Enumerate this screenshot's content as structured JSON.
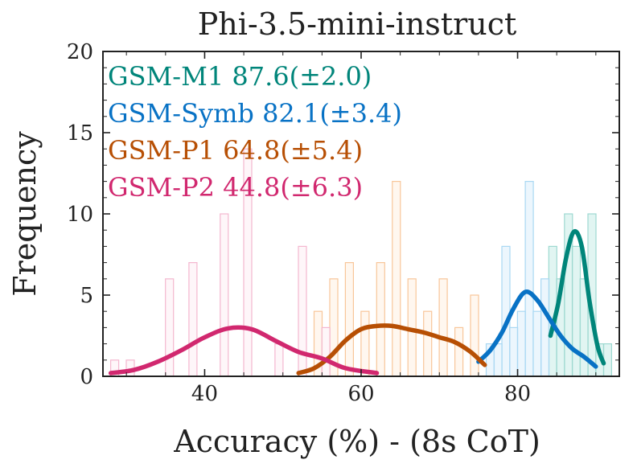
{
  "chart_data": {
    "type": "histogram",
    "title": "Phi-3.5-mini-instruct",
    "xlabel": "Accuracy (%) - (8s CoT)",
    "ylabel": "Frequency",
    "xlim": [
      27,
      93
    ],
    "ylim": [
      0,
      20
    ],
    "x_ticks": [
      40,
      60,
      80
    ],
    "x_tick_labels": [
      "40",
      "60",
      "80"
    ],
    "y_ticks": [
      0,
      5,
      10,
      15,
      20
    ],
    "y_tick_labels": [
      "0",
      "5",
      "10",
      "15",
      "20"
    ],
    "legend_position": "top-left",
    "series": [
      {
        "name": "GSM-M1",
        "legend": "GSM-M1 87.6(±2.0)",
        "color": "#00857a",
        "bar_fill": "#c8ece7",
        "bar_stroke": "#9ed9d1",
        "bins": [
          {
            "x": 84.5,
            "count": 8
          },
          {
            "x": 85.5,
            "count": 6
          },
          {
            "x": 86.5,
            "count": 10
          },
          {
            "x": 87.5,
            "count": 8
          },
          {
            "x": 88.5,
            "count": 6
          },
          {
            "x": 89.5,
            "count": 10
          },
          {
            "x": 90.5,
            "count": 2
          },
          {
            "x": 91.5,
            "count": 2
          }
        ],
        "curve": [
          [
            84.2,
            2.5
          ],
          [
            85.2,
            4.5
          ],
          [
            86.2,
            7.3
          ],
          [
            87.2,
            8.9
          ],
          [
            88.2,
            8.0
          ],
          [
            89.2,
            4.6
          ],
          [
            90.2,
            1.9
          ],
          [
            91.0,
            0.8
          ]
        ]
      },
      {
        "name": "GSM-Symb",
        "legend": "GSM-Symb 82.1(±3.4)",
        "color": "#0872c5",
        "bar_fill": "#dceffb",
        "bar_stroke": "#a9d8f3",
        "bins": [
          {
            "x": 76.5,
            "count": 2
          },
          {
            "x": 77.5,
            "count": 2
          },
          {
            "x": 78.5,
            "count": 8
          },
          {
            "x": 79.5,
            "count": 3
          },
          {
            "x": 80.5,
            "count": 4
          },
          {
            "x": 81.5,
            "count": 12
          },
          {
            "x": 82.5,
            "count": 4
          },
          {
            "x": 83.5,
            "count": 6
          }
        ],
        "curve": [
          [
            75.0,
            0.9
          ],
          [
            76.5,
            1.6
          ],
          [
            78.0,
            2.7
          ],
          [
            79.5,
            4.2
          ],
          [
            81.0,
            5.2
          ],
          [
            82.5,
            4.7
          ],
          [
            84.0,
            3.6
          ],
          [
            85.5,
            2.5
          ],
          [
            87.0,
            1.7
          ],
          [
            88.5,
            1.2
          ],
          [
            90.0,
            0.6
          ]
        ]
      },
      {
        "name": "GSM-P1",
        "legend": "GSM-P1 64.8(±5.4)",
        "color": "#b74f04",
        "bar_fill": "#fff0e2",
        "bar_stroke": "#f8c69a",
        "bins": [
          {
            "x": 54.5,
            "count": 4
          },
          {
            "x": 56.5,
            "count": 6
          },
          {
            "x": 58.5,
            "count": 7
          },
          {
            "x": 60.5,
            "count": 4
          },
          {
            "x": 62.5,
            "count": 7
          },
          {
            "x": 64.5,
            "count": 12
          },
          {
            "x": 66.5,
            "count": 6
          },
          {
            "x": 68.5,
            "count": 4
          },
          {
            "x": 70.5,
            "count": 6
          },
          {
            "x": 72.5,
            "count": 3
          },
          {
            "x": 74.5,
            "count": 5
          }
        ],
        "curve": [
          [
            52.0,
            0.2
          ],
          [
            54.0,
            0.5
          ],
          [
            56.0,
            1.2
          ],
          [
            58.0,
            2.2
          ],
          [
            60.0,
            2.9
          ],
          [
            62.0,
            3.1
          ],
          [
            64.0,
            3.1
          ],
          [
            66.0,
            2.9
          ],
          [
            68.0,
            2.7
          ],
          [
            70.0,
            2.4
          ],
          [
            72.0,
            2.1
          ],
          [
            74.0,
            1.5
          ],
          [
            75.8,
            0.7
          ]
        ]
      },
      {
        "name": "GSM-P2",
        "legend": "GSM-P2 44.8(±6.3)",
        "color": "#d1286f",
        "bar_fill": "#fdeef4",
        "bar_stroke": "#f4b7cf",
        "bins": [
          {
            "x": 28.5,
            "count": 1
          },
          {
            "x": 30.5,
            "count": 1
          },
          {
            "x": 35.5,
            "count": 6
          },
          {
            "x": 38.5,
            "count": 7
          },
          {
            "x": 42.5,
            "count": 10
          },
          {
            "x": 45.5,
            "count": 14
          },
          {
            "x": 49.5,
            "count": 2
          },
          {
            "x": 52.5,
            "count": 8
          },
          {
            "x": 55.5,
            "count": 3
          }
        ],
        "curve": [
          [
            28.0,
            0.2
          ],
          [
            31.0,
            0.4
          ],
          [
            34.0,
            0.9
          ],
          [
            37.0,
            1.6
          ],
          [
            40.0,
            2.4
          ],
          [
            43.0,
            2.95
          ],
          [
            46.0,
            2.9
          ],
          [
            49.0,
            2.2
          ],
          [
            52.0,
            1.5
          ],
          [
            55.0,
            1.1
          ],
          [
            58.0,
            0.5
          ],
          [
            62.0,
            0.2
          ]
        ]
      }
    ]
  }
}
